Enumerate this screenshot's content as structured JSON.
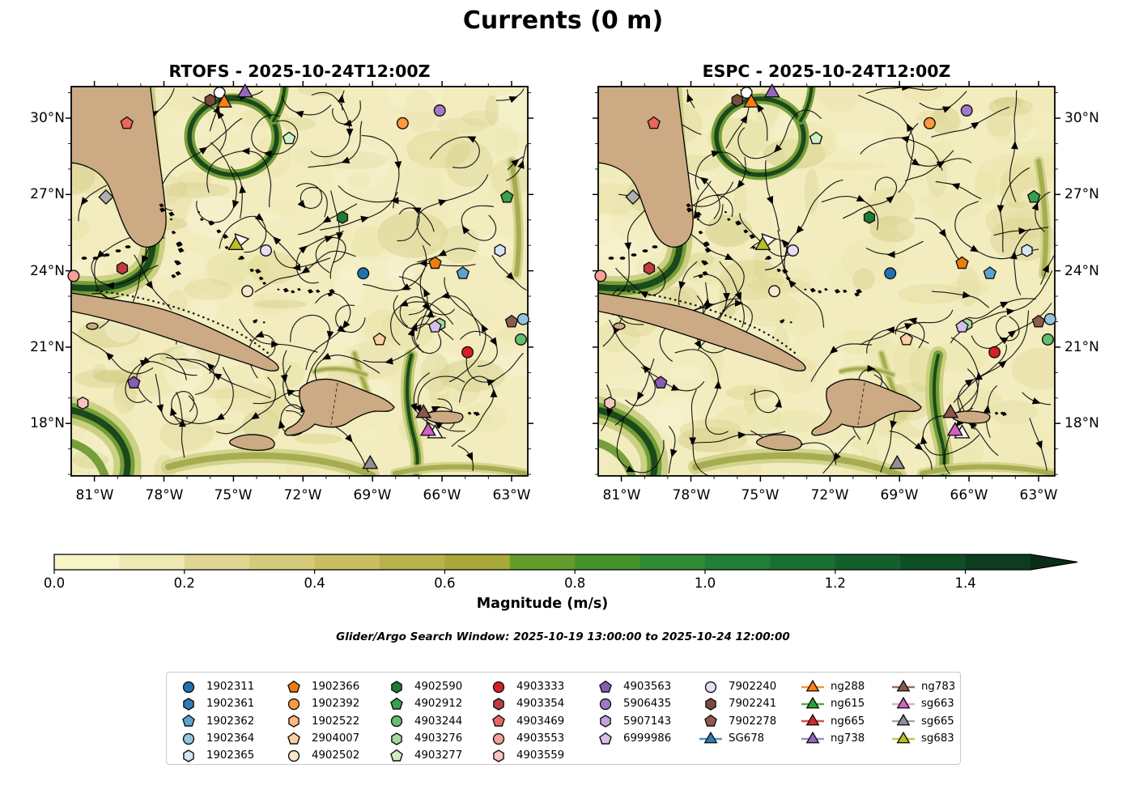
{
  "chart_data": {
    "type": "streamplot-map",
    "suptitle": "Currents (0 m)",
    "panels": [
      {
        "id": "rtofs",
        "title": "RTOFS - 2025-10-24T12:00Z"
      },
      {
        "id": "espc",
        "title": "ESPC - 2025-10-24T12:00Z"
      }
    ],
    "axes": {
      "lon_range": [
        -82.0,
        -62.3
      ],
      "lat_range": [
        15.94,
        31.24
      ],
      "x_major_ticks": [
        {
          "value": -81,
          "label": "81°W"
        },
        {
          "value": -78,
          "label": "78°W"
        },
        {
          "value": -75,
          "label": "75°W"
        },
        {
          "value": -72,
          "label": "72°W"
        },
        {
          "value": -69,
          "label": "69°W"
        },
        {
          "value": -66,
          "label": "66°W"
        },
        {
          "value": -63,
          "label": "63°W"
        }
      ],
      "y_major_ticks": [
        {
          "value": 30,
          "label": "30°N"
        },
        {
          "value": 27,
          "label": "27°N"
        },
        {
          "value": 24,
          "label": "24°N"
        },
        {
          "value": 21,
          "label": "21°N"
        },
        {
          "value": 18,
          "label": "18°N"
        }
      ],
      "x_minor_ticks": [
        -80,
        -79,
        -77,
        -76,
        -74,
        -73,
        -71,
        -70,
        -68,
        -67,
        -65,
        -64
      ],
      "y_minor_ticks": [
        31,
        29,
        28,
        26,
        25,
        23,
        22,
        20,
        19,
        17,
        16
      ]
    },
    "colorbar": {
      "label": "Magnitude (m/s)",
      "ticks": [
        "0.0",
        "0.2",
        "0.4",
        "0.6",
        "0.8",
        "1.0",
        "1.2",
        "1.4"
      ],
      "vmin": 0.0,
      "vmax": 1.5,
      "extend": "max",
      "segment_colors": [
        "#f7f4c8",
        "#efeab3",
        "#e0d694",
        "#d5ca7c",
        "#c9be62",
        "#b9b34c",
        "#a8a93a",
        "#639c2b",
        "#46922a",
        "#2e8a33",
        "#217e36",
        "#197033",
        "#14602d",
        "#0f4f26",
        "#0b3d1e"
      ],
      "arrow_color": "#082e17"
    },
    "annotations": {
      "search_window": "Glider/Argo Search Window: 2025-10-19 13:00:00 to 2025-10-24 12:00:00"
    },
    "legend": {
      "columns": [
        [
          {
            "label": "1902311",
            "kind": "float",
            "shape": "circle",
            "color": "#2272b2"
          },
          {
            "label": "1902361",
            "kind": "float",
            "shape": "hexagon",
            "color": "#2e7ebc"
          },
          {
            "label": "1902362",
            "kind": "float",
            "shape": "pentagon",
            "color": "#5ca4d0"
          },
          {
            "label": "1902364",
            "kind": "float",
            "shape": "circle",
            "color": "#93c4e0"
          },
          {
            "label": "1902365",
            "kind": "float",
            "shape": "hexagon",
            "color": "#d3e5f3"
          }
        ],
        [
          {
            "label": "1902366",
            "kind": "float",
            "shape": "pentagon",
            "color": "#ee7d0e"
          },
          {
            "label": "1902392",
            "kind": "float",
            "shape": "circle",
            "color": "#fd9a3d"
          },
          {
            "label": "1902522",
            "kind": "float",
            "shape": "hexagon",
            "color": "#fdb97c"
          },
          {
            "label": "2904007",
            "kind": "float",
            "shape": "pentagon",
            "color": "#fbcf9e"
          },
          {
            "label": "4902502",
            "kind": "float",
            "shape": "circle",
            "color": "#fae7d0"
          }
        ],
        [
          {
            "label": "4902590",
            "kind": "float",
            "shape": "hexagon",
            "color": "#1d7c34"
          },
          {
            "label": "4902912",
            "kind": "float",
            "shape": "pentagon",
            "color": "#39a04e"
          },
          {
            "label": "4903244",
            "kind": "float",
            "shape": "circle",
            "color": "#63bf6e"
          },
          {
            "label": "4903276",
            "kind": "float",
            "shape": "hexagon",
            "color": "#a2dc9a"
          },
          {
            "label": "4903277",
            "kind": "float",
            "shape": "pentagon",
            "color": "#cff0c4"
          }
        ],
        [
          {
            "label": "4903333",
            "kind": "float",
            "shape": "circle",
            "color": "#d62026"
          },
          {
            "label": "4903354",
            "kind": "float",
            "shape": "hexagon",
            "color": "#c23b40"
          },
          {
            "label": "4903469",
            "kind": "float",
            "shape": "pentagon",
            "color": "#ec655c"
          },
          {
            "label": "4903553",
            "kind": "float",
            "shape": "circle",
            "color": "#f89f97"
          },
          {
            "label": "4903559",
            "kind": "float",
            "shape": "hexagon",
            "color": "#fac3c3"
          }
        ],
        [
          {
            "label": "4903563",
            "kind": "float",
            "shape": "pentagon",
            "color": "#8a5cb4"
          },
          {
            "label": "5906435",
            "kind": "float",
            "shape": "circle",
            "color": "#a478c8"
          },
          {
            "label": "5907143",
            "kind": "float",
            "shape": "hexagon",
            "color": "#c1a4dc"
          },
          {
            "label": "6999986",
            "kind": "float",
            "shape": "pentagon",
            "color": "#d4bfe8"
          }
        ],
        [
          {
            "label": "7902240",
            "kind": "float",
            "shape": "circle",
            "color": "#e9dcf5"
          },
          {
            "label": "7902241",
            "kind": "float",
            "shape": "hexagon",
            "color": "#7b4b3d"
          },
          {
            "label": "7902278",
            "kind": "float",
            "shape": "pentagon",
            "color": "#8d5c4c"
          },
          {
            "label": "SG678",
            "kind": "glider",
            "shape": "triangle",
            "color": "#2e7ebc",
            "line": "#4f94c9"
          }
        ],
        [
          {
            "label": "ng288",
            "kind": "glider",
            "shape": "triangle",
            "color": "#ff7f0e",
            "line": "#ff9933"
          },
          {
            "label": "ng615",
            "kind": "glider",
            "shape": "triangle",
            "color": "#2ca02c",
            "line": "#45b54a"
          },
          {
            "label": "ng665",
            "kind": "glider",
            "shape": "triangle",
            "color": "#d62728",
            "line": "#e04b4b"
          },
          {
            "label": "ng738",
            "kind": "glider",
            "shape": "triangle",
            "color": "#9467bd",
            "line": "#ab85cf"
          }
        ],
        [
          {
            "label": "ng783",
            "kind": "glider",
            "shape": "triangle",
            "color": "#8c564b",
            "line": "#a06a5e"
          },
          {
            "label": "sg663",
            "kind": "glider",
            "shape": "triangle",
            "color": "#d45fc4",
            "line": "#f0a2d8"
          },
          {
            "label": "sg665",
            "kind": "glider",
            "shape": "triangle",
            "color": "#909090",
            "line": "#a5a5a5"
          },
          {
            "label": "sg683",
            "kind": "glider",
            "shape": "triangle",
            "color": "#bcbd22",
            "line": "#c9ca45"
          }
        ]
      ]
    },
    "map_markers": [
      {
        "label": "4903469",
        "shape": "pentagon",
        "color": "#ec655c",
        "lon": -79.6,
        "lat": 29.8
      },
      {
        "label": "7902241",
        "shape": "hexagon",
        "color": "#7b4b3d",
        "lon": -76.0,
        "lat": 30.7
      },
      {
        "label": "",
        "shape": "circle",
        "color": "#ffffff",
        "lon": -75.6,
        "lat": 31.0
      },
      {
        "label": "ng288",
        "shape": "triangle",
        "color": "#ff7f0e",
        "lon": -75.4,
        "lat": 30.6
      },
      {
        "label": "ng738",
        "shape": "triangle",
        "color": "#9467bd",
        "lon": -74.5,
        "lat": 31.0
      },
      {
        "label": "4903277",
        "shape": "pentagon",
        "color": "#cff0c4",
        "lon": -72.6,
        "lat": 29.2
      },
      {
        "label": "5906435",
        "shape": "circle",
        "color": "#a478c8",
        "lon": -66.1,
        "lat": 30.3
      },
      {
        "label": "1902392",
        "shape": "circle",
        "color": "#fd9a3d",
        "lon": -67.7,
        "lat": 29.8
      },
      {
        "label": "4902912",
        "shape": "pentagon",
        "color": "#39a04e",
        "lon": -63.2,
        "lat": 26.9
      },
      {
        "label": "4902590",
        "shape": "hexagon",
        "color": "#1d7c34",
        "lon": -70.3,
        "lat": 26.1
      },
      {
        "label": "",
        "shape": "triangle",
        "color": "#ffffff",
        "lon": -74.7,
        "lat": 25.2,
        "rot": -40
      },
      {
        "label": "sg683",
        "shape": "triangle",
        "color": "#bcbd22",
        "lon": -74.9,
        "lat": 25.0
      },
      {
        "label": "7902240",
        "shape": "circle",
        "color": "#e9dcf5",
        "lon": -73.6,
        "lat": 24.8
      },
      {
        "label": "4903354",
        "shape": "hexagon",
        "color": "#c23b40",
        "lon": -79.8,
        "lat": 24.1
      },
      {
        "label": "4903553",
        "shape": "circle",
        "color": "#f89f97",
        "lon": -81.9,
        "lat": 23.8
      },
      {
        "label": "1902365",
        "shape": "hexagon",
        "color": "#d3e5f3",
        "lon": -63.5,
        "lat": 24.8
      },
      {
        "label": "1902366",
        "shape": "pentagon",
        "color": "#ee7d0e",
        "lon": -66.3,
        "lat": 24.3
      },
      {
        "label": "1902311",
        "shape": "circle",
        "color": "#2272b2",
        "lon": -69.4,
        "lat": 23.9
      },
      {
        "label": "1902362",
        "shape": "pentagon",
        "color": "#5ca4d0",
        "lon": -65.1,
        "lat": 23.9
      },
      {
        "label": "4902502",
        "shape": "circle",
        "color": "#fae7d0",
        "lon": -74.4,
        "lat": 23.2
      },
      {
        "label": "4903563",
        "shape": "pentagon",
        "color": "#8a5cb4",
        "lon": -79.3,
        "lat": 19.6
      },
      {
        "label": "4903559",
        "shape": "hexagon",
        "color": "#fac3c3",
        "lon": -81.5,
        "lat": 18.8
      },
      {
        "label": "2904007",
        "shape": "pentagon",
        "color": "#fbcf9e",
        "lon": -68.7,
        "lat": 21.3
      },
      {
        "label": "4903276",
        "shape": "hexagon",
        "color": "#a2dc9a",
        "lon": -66.1,
        "lat": 21.9
      },
      {
        "label": "6999986",
        "shape": "pentagon",
        "color": "#d4bfe8",
        "lon": -66.3,
        "lat": 21.8
      },
      {
        "label": "4903333",
        "shape": "circle",
        "color": "#d62026",
        "lon": -64.9,
        "lat": 20.8
      },
      {
        "label": "7902278",
        "shape": "pentagon",
        "color": "#8d5c4c",
        "lon": -63.0,
        "lat": 22.0
      },
      {
        "label": "1902364",
        "shape": "circle",
        "color": "#93c4e0",
        "lon": -62.5,
        "lat": 22.1
      },
      {
        "label": "4903244",
        "shape": "circle",
        "color": "#63bf6e",
        "lon": -62.6,
        "lat": 21.3
      },
      {
        "label": "ng783",
        "shape": "triangle",
        "color": "#8c564b",
        "lon": -66.8,
        "lat": 18.4
      },
      {
        "label": "",
        "shape": "triangle",
        "color": "#ffffff",
        "lon": -66.3,
        "lat": 17.6
      },
      {
        "label": "sg663",
        "shape": "triangle",
        "color": "#d45fc4",
        "lon": -66.6,
        "lat": 17.7
      },
      {
        "label": "sg665",
        "shape": "triangle",
        "color": "#909090",
        "lon": -69.1,
        "lat": 16.4
      },
      {
        "label": "",
        "shape": "diamond",
        "color": "#b0b0b0",
        "lon": -80.5,
        "lat": 26.9
      }
    ],
    "style": {
      "ocean": "#f2ecbe",
      "land": "#cbaa84",
      "coastline": "#000000",
      "streamline": "#0a0a0a",
      "current_halo": "#c6cb79",
      "current_mid": "#6f9b33",
      "current_core": "#16441a"
    }
  }
}
